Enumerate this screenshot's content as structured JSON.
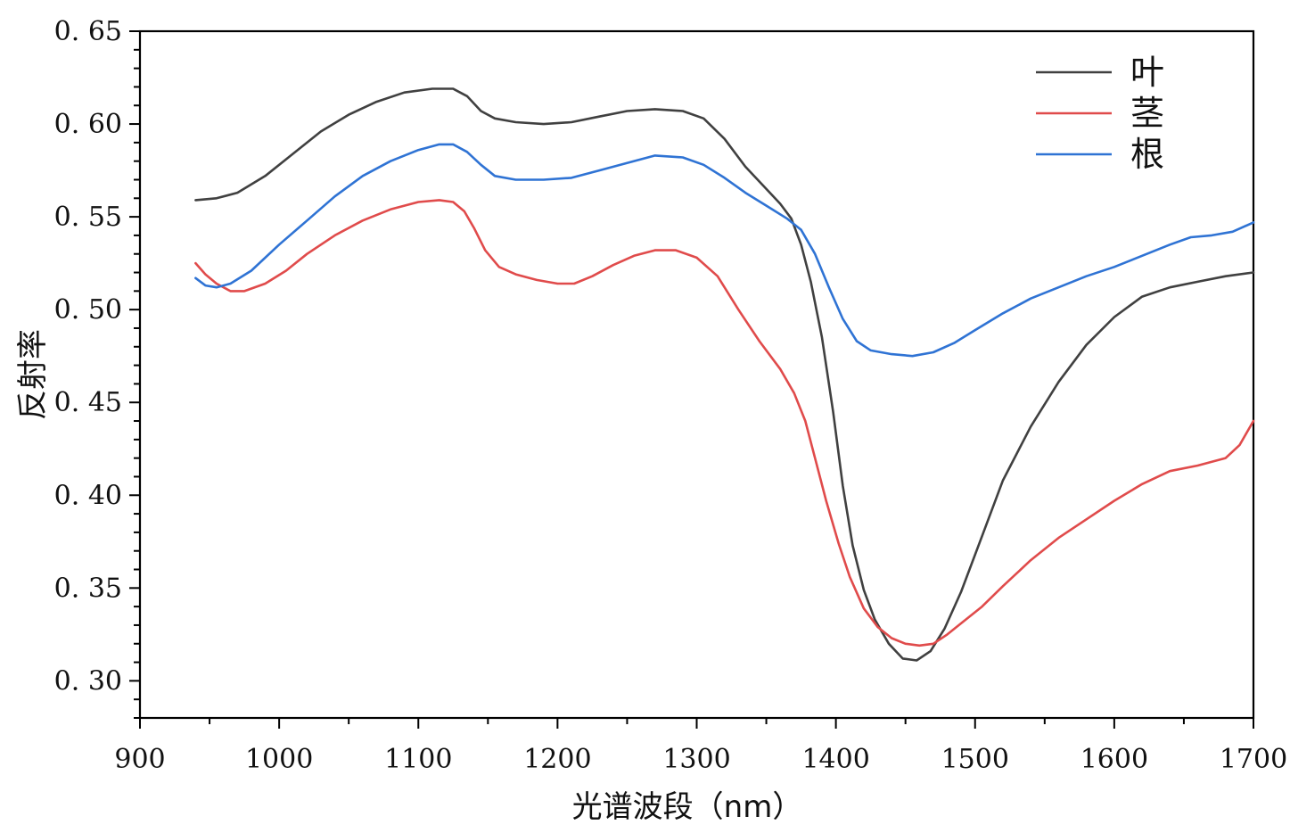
{
  "chart_data": {
    "type": "line",
    "title": "",
    "xlabel": "光谱波段（nm）",
    "ylabel": "反射率",
    "xlim": [
      900,
      1700
    ],
    "ylim": [
      0.28,
      0.65
    ],
    "xticks": [
      900,
      1000,
      1100,
      1200,
      1300,
      1400,
      1500,
      1600,
      1700
    ],
    "xtick_labels": [
      "900",
      "1000",
      "1100",
      "1200",
      "1300",
      "1400",
      "1500",
      "1600",
      "1700"
    ],
    "yticks": [
      0.3,
      0.35,
      0.4,
      0.45,
      0.5,
      0.55,
      0.6,
      0.65
    ],
    "ytick_labels": [
      "0. 30",
      "0. 35",
      "0. 40",
      "0. 45",
      "0. 50",
      "0. 55",
      "0. 60",
      "0. 65"
    ],
    "grid": false,
    "legend_position": "top-right",
    "series": [
      {
        "name": "叶",
        "color": "#404040",
        "points": [
          [
            940,
            0.559
          ],
          [
            955,
            0.56
          ],
          [
            970,
            0.563
          ],
          [
            990,
            0.572
          ],
          [
            1010,
            0.584
          ],
          [
            1030,
            0.596
          ],
          [
            1050,
            0.605
          ],
          [
            1070,
            0.612
          ],
          [
            1090,
            0.617
          ],
          [
            1110,
            0.619
          ],
          [
            1125,
            0.619
          ],
          [
            1135,
            0.615
          ],
          [
            1145,
            0.607
          ],
          [
            1155,
            0.603
          ],
          [
            1170,
            0.601
          ],
          [
            1190,
            0.6
          ],
          [
            1210,
            0.601
          ],
          [
            1230,
            0.604
          ],
          [
            1250,
            0.607
          ],
          [
            1270,
            0.608
          ],
          [
            1290,
            0.607
          ],
          [
            1305,
            0.603
          ],
          [
            1320,
            0.592
          ],
          [
            1335,
            0.577
          ],
          [
            1350,
            0.565
          ],
          [
            1360,
            0.557
          ],
          [
            1368,
            0.549
          ],
          [
            1375,
            0.535
          ],
          [
            1382,
            0.515
          ],
          [
            1390,
            0.485
          ],
          [
            1398,
            0.445
          ],
          [
            1405,
            0.405
          ],
          [
            1412,
            0.373
          ],
          [
            1420,
            0.349
          ],
          [
            1428,
            0.333
          ],
          [
            1438,
            0.32
          ],
          [
            1448,
            0.312
          ],
          [
            1458,
            0.311
          ],
          [
            1468,
            0.316
          ],
          [
            1478,
            0.328
          ],
          [
            1490,
            0.348
          ],
          [
            1505,
            0.378
          ],
          [
            1520,
            0.408
          ],
          [
            1540,
            0.437
          ],
          [
            1560,
            0.461
          ],
          [
            1580,
            0.481
          ],
          [
            1600,
            0.496
          ],
          [
            1620,
            0.507
          ],
          [
            1640,
            0.512
          ],
          [
            1660,
            0.515
          ],
          [
            1680,
            0.518
          ],
          [
            1700,
            0.52
          ]
        ]
      },
      {
        "name": "茎",
        "color": "#e04b4b",
        "points": [
          [
            940,
            0.525
          ],
          [
            947,
            0.519
          ],
          [
            955,
            0.514
          ],
          [
            965,
            0.51
          ],
          [
            975,
            0.51
          ],
          [
            990,
            0.514
          ],
          [
            1005,
            0.521
          ],
          [
            1020,
            0.53
          ],
          [
            1040,
            0.54
          ],
          [
            1060,
            0.548
          ],
          [
            1080,
            0.554
          ],
          [
            1100,
            0.558
          ],
          [
            1115,
            0.559
          ],
          [
            1125,
            0.558
          ],
          [
            1133,
            0.553
          ],
          [
            1140,
            0.544
          ],
          [
            1148,
            0.532
          ],
          [
            1158,
            0.523
          ],
          [
            1170,
            0.519
          ],
          [
            1185,
            0.516
          ],
          [
            1200,
            0.514
          ],
          [
            1212,
            0.514
          ],
          [
            1225,
            0.518
          ],
          [
            1240,
            0.524
          ],
          [
            1255,
            0.529
          ],
          [
            1270,
            0.532
          ],
          [
            1285,
            0.532
          ],
          [
            1300,
            0.528
          ],
          [
            1315,
            0.518
          ],
          [
            1330,
            0.5
          ],
          [
            1345,
            0.483
          ],
          [
            1360,
            0.468
          ],
          [
            1370,
            0.455
          ],
          [
            1378,
            0.44
          ],
          [
            1385,
            0.42
          ],
          [
            1393,
            0.397
          ],
          [
            1402,
            0.374
          ],
          [
            1410,
            0.356
          ],
          [
            1420,
            0.339
          ],
          [
            1430,
            0.329
          ],
          [
            1440,
            0.323
          ],
          [
            1450,
            0.32
          ],
          [
            1460,
            0.319
          ],
          [
            1470,
            0.32
          ],
          [
            1480,
            0.325
          ],
          [
            1490,
            0.331
          ],
          [
            1505,
            0.34
          ],
          [
            1520,
            0.351
          ],
          [
            1540,
            0.365
          ],
          [
            1560,
            0.377
          ],
          [
            1580,
            0.387
          ],
          [
            1600,
            0.397
          ],
          [
            1620,
            0.406
          ],
          [
            1640,
            0.413
          ],
          [
            1660,
            0.416
          ],
          [
            1680,
            0.42
          ],
          [
            1690,
            0.427
          ],
          [
            1700,
            0.44
          ]
        ]
      },
      {
        "name": "根",
        "color": "#2f73d4",
        "points": [
          [
            940,
            0.517
          ],
          [
            947,
            0.513
          ],
          [
            955,
            0.512
          ],
          [
            965,
            0.514
          ],
          [
            980,
            0.521
          ],
          [
            1000,
            0.535
          ],
          [
            1020,
            0.548
          ],
          [
            1040,
            0.561
          ],
          [
            1060,
            0.572
          ],
          [
            1080,
            0.58
          ],
          [
            1100,
            0.586
          ],
          [
            1115,
            0.589
          ],
          [
            1125,
            0.589
          ],
          [
            1135,
            0.585
          ],
          [
            1145,
            0.578
          ],
          [
            1155,
            0.572
          ],
          [
            1170,
            0.57
          ],
          [
            1190,
            0.57
          ],
          [
            1210,
            0.571
          ],
          [
            1230,
            0.575
          ],
          [
            1250,
            0.579
          ],
          [
            1270,
            0.583
          ],
          [
            1290,
            0.582
          ],
          [
            1305,
            0.578
          ],
          [
            1320,
            0.571
          ],
          [
            1335,
            0.563
          ],
          [
            1350,
            0.556
          ],
          [
            1365,
            0.549
          ],
          [
            1375,
            0.543
          ],
          [
            1385,
            0.53
          ],
          [
            1395,
            0.512
          ],
          [
            1405,
            0.495
          ],
          [
            1415,
            0.483
          ],
          [
            1425,
            0.478
          ],
          [
            1440,
            0.476
          ],
          [
            1455,
            0.475
          ],
          [
            1470,
            0.477
          ],
          [
            1485,
            0.482
          ],
          [
            1500,
            0.489
          ],
          [
            1520,
            0.498
          ],
          [
            1540,
            0.506
          ],
          [
            1560,
            0.512
          ],
          [
            1580,
            0.518
          ],
          [
            1600,
            0.523
          ],
          [
            1620,
            0.529
          ],
          [
            1640,
            0.535
          ],
          [
            1655,
            0.539
          ],
          [
            1670,
            0.54
          ],
          [
            1685,
            0.542
          ],
          [
            1700,
            0.547
          ]
        ]
      }
    ]
  }
}
